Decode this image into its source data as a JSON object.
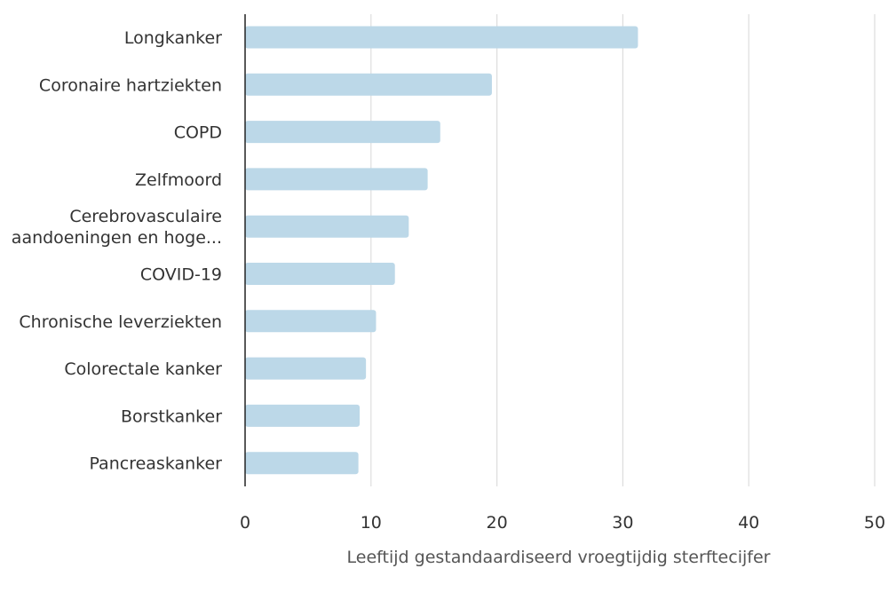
{
  "chart_data": {
    "type": "bar",
    "orientation": "horizontal",
    "categories": [
      [
        "Longkanker"
      ],
      [
        "Coronaire hartziekten"
      ],
      [
        "COPD"
      ],
      [
        "Zelfmoord"
      ],
      [
        "Cerebrovasculaire",
        "aandoeningen en hoge..."
      ],
      [
        "COVID-19"
      ],
      [
        "Chronische leverziekten"
      ],
      [
        "Colorectale kanker"
      ],
      [
        "Borstkanker"
      ],
      [
        "Pancreaskanker"
      ]
    ],
    "values": [
      31.2,
      19.6,
      15.5,
      14.5,
      13.0,
      11.9,
      10.4,
      9.6,
      9.1,
      9.0
    ],
    "xlabel": "Leeftijd gestandaardiseerd vroegtijdig sterftecijfer",
    "xlim": [
      0,
      50
    ],
    "xticks": [
      0,
      10,
      20,
      30,
      40,
      50
    ],
    "grid": true,
    "bar_color": "#bcd8e8",
    "grid_color": "#dddddd",
    "axis_color": "#222222"
  }
}
